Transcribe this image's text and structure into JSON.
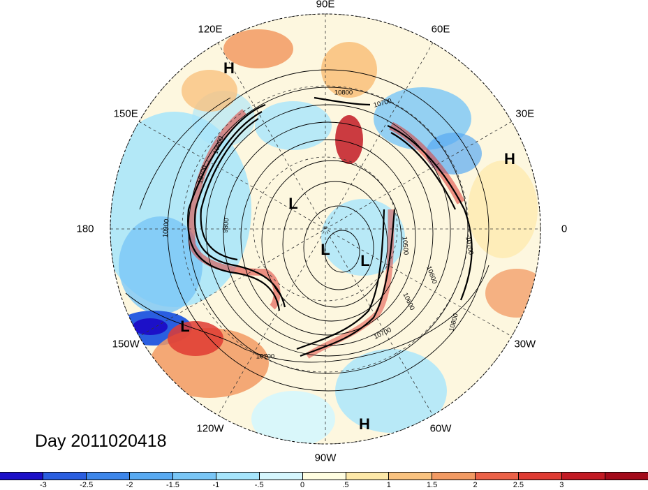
{
  "title": "Day 2011020418",
  "lon_labels": [
    {
      "text": "90E",
      "ang": 90
    },
    {
      "text": "60E",
      "ang": 60
    },
    {
      "text": "30E",
      "ang": 30
    },
    {
      "text": "0",
      "ang": 0
    },
    {
      "text": "30W",
      "ang": -30
    },
    {
      "text": "60W",
      "ang": -60
    },
    {
      "text": "90W",
      "ang": -90
    },
    {
      "text": "120W",
      "ang": -120
    },
    {
      "text": "150W",
      "ang": -150
    },
    {
      "text": "180",
      "ang": 180
    },
    {
      "text": "150E",
      "ang": 150
    },
    {
      "text": "120E",
      "ang": 120
    }
  ],
  "pressure_centers": [
    "H",
    "H",
    "H",
    "L",
    "L",
    "L",
    "L"
  ],
  "contour_values": [
    "10800",
    "10700",
    "10900",
    "10700",
    "10900",
    "9800",
    "10500",
    "10600",
    "10700",
    "10600",
    "10700",
    "10800",
    "10700"
  ],
  "colorbar": {
    "colors": [
      "#1c10c8",
      "#2a5ee0",
      "#3d86ea",
      "#58aaf2",
      "#79c6f6",
      "#a6e5fc",
      "#d5f6fd",
      "#fffde0",
      "#fde8a8",
      "#f9c27f",
      "#f29a63",
      "#eb6148",
      "#df3b33",
      "#c21a24",
      "#a30a1a"
    ],
    "ticks": [
      "-3",
      "-2.5",
      "-2",
      "-1.5",
      "-1",
      "-.5",
      "0",
      ".5",
      "1",
      "1.5",
      "2",
      "2.5",
      "3"
    ]
  }
}
